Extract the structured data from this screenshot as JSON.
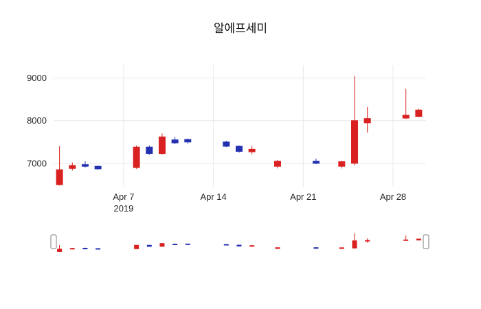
{
  "title": "알에프세미",
  "chart_data": {
    "type": "candlestick",
    "title": "알에프세미",
    "x": [
      "2019-04-02",
      "2019-04-03",
      "2019-04-04",
      "2019-04-05",
      "2019-04-08",
      "2019-04-09",
      "2019-04-10",
      "2019-04-11",
      "2019-04-12",
      "2019-04-15",
      "2019-04-16",
      "2019-04-17",
      "2019-04-19",
      "2019-04-22",
      "2019-04-24",
      "2019-04-25",
      "2019-04-26",
      "2019-04-29",
      "2019-04-30"
    ],
    "open": [
      6500,
      6880,
      6970,
      6930,
      6900,
      7380,
      7230,
      7550,
      7560,
      7500,
      7400,
      7270,
      6930,
      7050,
      6930,
      7000,
      7950,
      8060,
      8100
    ],
    "high": [
      7400,
      7020,
      7050,
      6950,
      7420,
      7420,
      7700,
      7620,
      7580,
      7530,
      7420,
      7410,
      7080,
      7110,
      7060,
      9050,
      8320,
      8750,
      8280
    ],
    "low": [
      6480,
      6830,
      6900,
      6850,
      6870,
      7200,
      7200,
      7450,
      7460,
      7380,
      7250,
      7210,
      6880,
      6980,
      6880,
      6950,
      7720,
      8040,
      8080
    ],
    "close": [
      6850,
      6950,
      6930,
      6870,
      7380,
      7230,
      7620,
      7480,
      7500,
      7400,
      7280,
      7330,
      7050,
      7000,
      7040,
      8000,
      8050,
      8130,
      8250
    ],
    "increasing_color": "#d92121",
    "decreasing_color": "#2331b0",
    "grid_color": "#e8e8e8",
    "ylim": [
      6450,
      9300
    ],
    "yticks": [
      7000,
      8000,
      9000
    ],
    "xticks": [
      {
        "day": 7,
        "label": "Apr 7",
        "sublabel": "2019"
      },
      {
        "day": 14,
        "label": "Apr 14"
      },
      {
        "day": 21,
        "label": "Apr 21"
      },
      {
        "day": 28,
        "label": "Apr 28"
      }
    ],
    "xlim_days": [
      1.54,
      30.57
    ],
    "grid": true,
    "legend": "none",
    "rangeslider": true
  }
}
